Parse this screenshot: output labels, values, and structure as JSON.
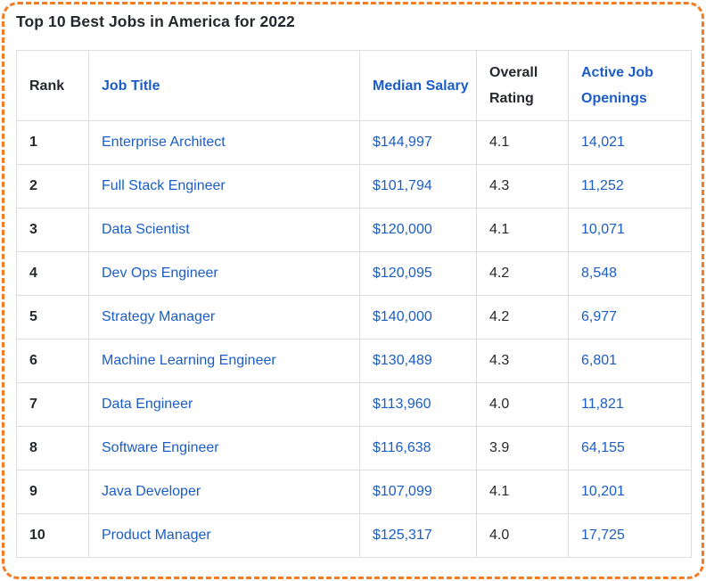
{
  "title": "Top 10 Best Jobs in America for 2022",
  "colors": {
    "accent_blue": "#1b5dc7",
    "text_dark": "#25282e",
    "frame_orange": "#f47b20",
    "grid_gray": "#dcdee1",
    "background": "#ffffff"
  },
  "table": {
    "columns": [
      {
        "key": "rank",
        "label": "Rank"
      },
      {
        "key": "job",
        "label": "Job Title"
      },
      {
        "key": "salary",
        "label": "Median Salary"
      },
      {
        "key": "rating",
        "label": "Overall Rating"
      },
      {
        "key": "open",
        "label": "Active Job Openings"
      }
    ],
    "rows": [
      {
        "rank": "1",
        "job": "Enterprise Architect",
        "salary": "$144,997",
        "rating": "4.1",
        "open": "14,021"
      },
      {
        "rank": "2",
        "job": "Full Stack Engineer",
        "salary": "$101,794",
        "rating": "4.3",
        "open": "11,252"
      },
      {
        "rank": "3",
        "job": "Data Scientist",
        "salary": "$120,000",
        "rating": "4.1",
        "open": "10,071"
      },
      {
        "rank": "4",
        "job": "Dev Ops Engineer",
        "salary": "$120,095",
        "rating": "4.2",
        "open": "8,548"
      },
      {
        "rank": "5",
        "job": "Strategy Manager",
        "salary": "$140,000",
        "rating": "4.2",
        "open": "6,977"
      },
      {
        "rank": "6",
        "job": "Machine Learning Engineer",
        "salary": "$130,489",
        "rating": "4.3",
        "open": "6,801"
      },
      {
        "rank": "7",
        "job": "Data Engineer",
        "salary": "$113,960",
        "rating": "4.0",
        "open": "11,821"
      },
      {
        "rank": "8",
        "job": "Software Engineer",
        "salary": "$116,638",
        "rating": "3.9",
        "open": "64,155"
      },
      {
        "rank": "9",
        "job": "Java Developer",
        "salary": "$107,099",
        "rating": "4.1",
        "open": "10,201"
      },
      {
        "rank": "10",
        "job": "Product Manager",
        "salary": "$125,317",
        "rating": "4.0",
        "open": "17,725"
      }
    ]
  },
  "chart_data": {
    "type": "table",
    "title": "Top 10 Best Jobs in America for 2022",
    "columns": [
      "Rank",
      "Job Title",
      "Median Salary",
      "Overall Rating",
      "Active Job Openings"
    ],
    "rows": [
      [
        1,
        "Enterprise Architect",
        144997,
        4.1,
        14021
      ],
      [
        2,
        "Full Stack Engineer",
        101794,
        4.3,
        11252
      ],
      [
        3,
        "Data Scientist",
        120000,
        4.1,
        10071
      ],
      [
        4,
        "Dev Ops Engineer",
        120095,
        4.2,
        8548
      ],
      [
        5,
        "Strategy Manager",
        140000,
        4.2,
        6977
      ],
      [
        6,
        "Machine Learning Engineer",
        130489,
        4.3,
        6801
      ],
      [
        7,
        "Data Engineer",
        113960,
        4.0,
        11821
      ],
      [
        8,
        "Software Engineer",
        116638,
        3.9,
        64155
      ],
      [
        9,
        "Java Developer",
        107099,
        4.1,
        10201
      ],
      [
        10,
        "Product Manager",
        125317,
        4.0,
        17725
      ]
    ]
  }
}
